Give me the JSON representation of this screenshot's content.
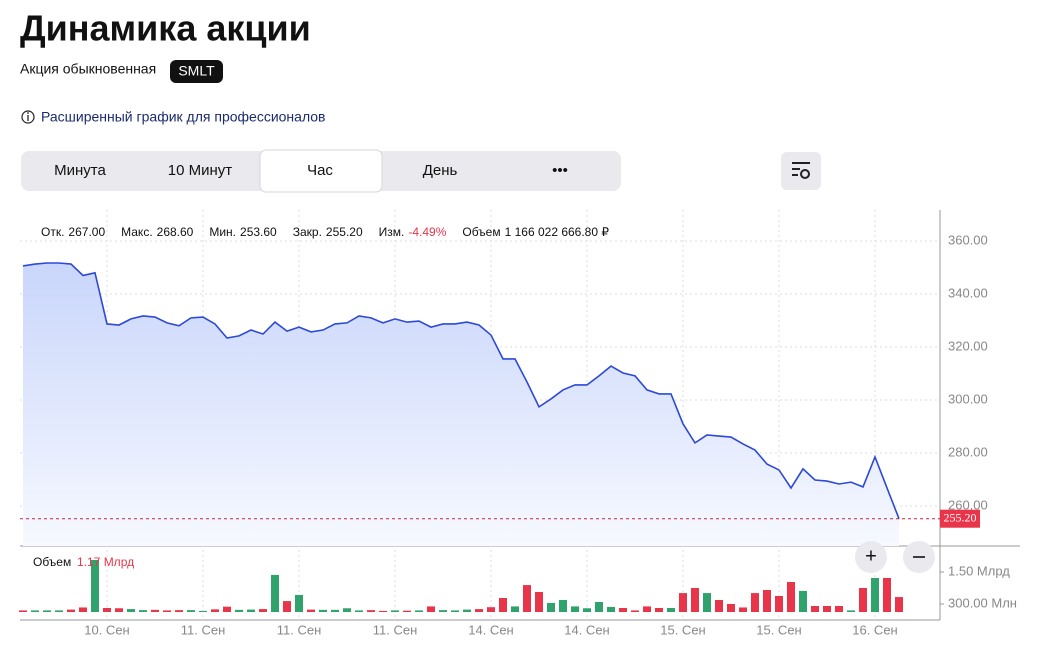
{
  "header": {
    "title": "Динамика акции",
    "subtitle": "Акция обыкновенная",
    "ticker": "SMLT",
    "link": "Расширенный график для профессионалов"
  },
  "tabs": {
    "items": [
      "Минута",
      "10 Минут",
      "Час",
      "День",
      "•••"
    ],
    "active": 2
  },
  "chart_data": {
    "type": "line",
    "stats": [
      [
        "Отк.",
        "267.00"
      ],
      [
        "Макс.",
        "268.60"
      ],
      [
        "Мин.",
        "253.60"
      ],
      [
        "Закр.",
        "255.20"
      ],
      [
        "Изм.",
        "-4.49%"
      ],
      [
        "Объем",
        "1 166 022 666.80 ₽"
      ]
    ],
    "categories": [
      null,
      null,
      null,
      null,
      null,
      null,
      null,
      "10. Сен",
      null,
      null,
      null,
      null,
      null,
      null,
      null,
      "11. Сен",
      null,
      null,
      null,
      null,
      null,
      null,
      null,
      "11. Сен",
      null,
      null,
      null,
      null,
      null,
      null,
      null,
      "11. Сен",
      null,
      null,
      null,
      null,
      null,
      null,
      null,
      "14. Сен",
      null,
      null,
      null,
      null,
      null,
      null,
      null,
      "14. Сен",
      null,
      null,
      null,
      null,
      null,
      null,
      null,
      "15. Сен",
      null,
      null,
      null,
      null,
      null,
      null,
      null,
      "15. Сен",
      null,
      null,
      null,
      null,
      null,
      null,
      null,
      "16. Сен",
      null,
      null
    ],
    "values": [
      350.6,
      351.3,
      351.7,
      351.7,
      351.3,
      347,
      348,
      328.7,
      328.3,
      330.6,
      331.7,
      331.3,
      329.1,
      328,
      331,
      331.3,
      328.7,
      323.4,
      324.2,
      326.4,
      324.9,
      329.4,
      326,
      327.5,
      325.7,
      326.4,
      328.7,
      329.1,
      331.7,
      331,
      329.1,
      330.6,
      329.4,
      329.8,
      327.5,
      328.7,
      328.7,
      329.4,
      328.3,
      324.5,
      315.5,
      315.5,
      306.8,
      297.4,
      300.4,
      303.8,
      305.7,
      305.7,
      309.1,
      312.8,
      310.2,
      309.1,
      303.8,
      302.3,
      302.3,
      291,
      283.8,
      286.8,
      286.4,
      286,
      283.4,
      281.1,
      275.8,
      273.6,
      266.8,
      274,
      269.8,
      269.4,
      268.3,
      269,
      267.2,
      278.5,
      266.8,
      255.2
    ],
    "color": "#2d49d6",
    "ylim": [
      244.9,
      371.7
    ],
    "yticks": [
      {
        "value": 260,
        "label": "260.00"
      },
      {
        "value": 280,
        "label": "280.00"
      },
      {
        "value": 300,
        "label": "300.00"
      },
      {
        "value": 320,
        "label": "320.00"
      },
      {
        "value": 340,
        "label": "340.00"
      },
      {
        "value": 360,
        "label": "360.00"
      }
    ],
    "last_price": {
      "value": 255.2,
      "label": "255.20"
    },
    "grid": true,
    "volume": {
      "label": "Объем",
      "value_label": "1.17 Млрд",
      "values": [
        60,
        60,
        60,
        60,
        90,
        170,
        1950,
        150,
        140,
        110,
        70,
        80,
        60,
        70,
        70,
        40,
        100,
        200,
        80,
        90,
        110,
        1390,
        410,
        640,
        90,
        80,
        80,
        140,
        60,
        70,
        40,
        60,
        50,
        60,
        210,
        70,
        60,
        90,
        110,
        180,
        525,
        210,
        1010,
        750,
        340,
        450,
        210,
        140,
        375,
        190,
        150,
        60,
        210,
        150,
        150,
        710,
        900,
        710,
        450,
        300,
        170,
        710,
        825,
        600,
        1125,
        790,
        225,
        225,
        225,
        60,
        900,
        1275,
        1275,
        560
      ],
      "ylim": [
        0,
        2400
      ],
      "yticks": [
        {
          "value": 300,
          "label": "300.00 Млн"
        },
        {
          "value": 1500,
          "label": "1.50 Млрд"
        }
      ],
      "up_color": "#2fa36b",
      "down_color": "#e8354a"
    }
  }
}
